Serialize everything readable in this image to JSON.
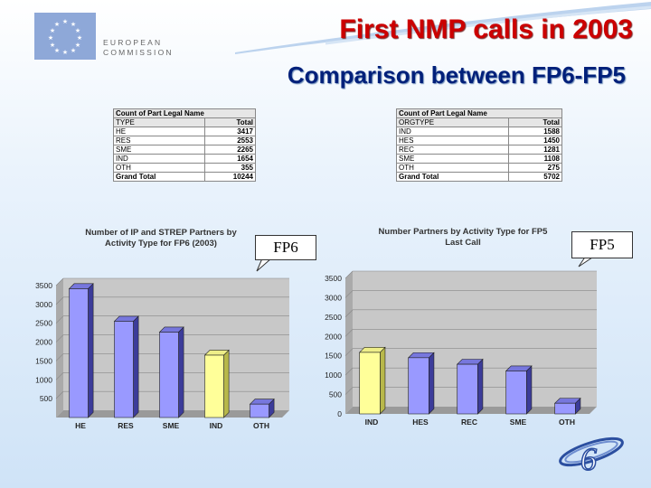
{
  "slide": {
    "title": "First NMP calls in 2003",
    "subtitle": "Comparison between FP6-FP5",
    "eu_logo_text": [
      "EUROPEAN",
      "COMMISSION"
    ]
  },
  "tables": {
    "fp6": {
      "caption": "Count of Part Legal Name",
      "header": [
        "TYPE",
        "Total"
      ],
      "rows": [
        [
          "HE",
          "3417"
        ],
        [
          "RES",
          "2553"
        ],
        [
          "SME",
          "2265"
        ],
        [
          "IND",
          "1654"
        ],
        [
          "OTH",
          "355"
        ]
      ],
      "total": [
        "Grand Total",
        "10244"
      ]
    },
    "fp5": {
      "caption": "Count of Part Legal Name",
      "header": [
        "ORGTYPE",
        "Total"
      ],
      "rows": [
        [
          "IND",
          "1588"
        ],
        [
          "HES",
          "1450"
        ],
        [
          "REC",
          "1281"
        ],
        [
          "SME",
          "1108"
        ],
        [
          "OTH",
          "275"
        ]
      ],
      "total": [
        "Grand Total",
        "5702"
      ]
    }
  },
  "callouts": {
    "fp6": "FP6",
    "fp5": "FP5"
  },
  "colors": {
    "bar": "#9999ff",
    "bar_highlight": "#ffff99",
    "title_red": "#cc0000",
    "subtitle_blue": "#00207a"
  },
  "chart_data": [
    {
      "type": "bar",
      "title": "Number of IP and STREP Partners by Activity Type for FP6 (2003)",
      "categories": [
        "HE",
        "RES",
        "SME",
        "IND",
        "OTH"
      ],
      "values": [
        3417,
        2553,
        2265,
        1654,
        355
      ],
      "highlight": "IND",
      "yticks": [
        0,
        500,
        1000,
        1500,
        2000,
        2500,
        3000,
        3500
      ],
      "ylim": [
        0,
        3500
      ],
      "y_tick_labels_visible_from": 500,
      "xlabel": "",
      "ylabel": "",
      "grid": true,
      "style": "3d"
    },
    {
      "type": "bar",
      "title": "Number Partners by Activity Type for FP5 Last Call",
      "categories": [
        "IND",
        "HES",
        "REC",
        "SME",
        "OTH"
      ],
      "values": [
        1588,
        1450,
        1281,
        1108,
        275
      ],
      "highlight": "IND",
      "yticks": [
        0,
        500,
        1000,
        1500,
        2000,
        2500,
        3000,
        3500
      ],
      "ylim": [
        0,
        3500
      ],
      "y_tick_labels_visible_from": 0,
      "xlabel": "",
      "ylabel": "",
      "grid": true,
      "style": "3d"
    }
  ]
}
